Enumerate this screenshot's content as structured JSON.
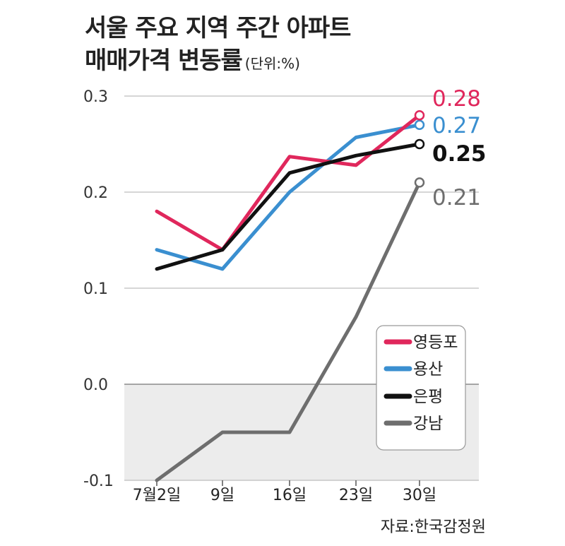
{
  "title_line1": "서울 주요 지역 주간 아파트",
  "title_line2": "매매가격 변동률",
  "unit": "(단위:%)",
  "source": "자료:한국감정원",
  "chart_data": {
    "type": "line",
    "categories": [
      "7월2일",
      "9일",
      "16일",
      "23일",
      "30일"
    ],
    "ylim": [
      -0.1,
      0.3
    ],
    "yticks": [
      0.3,
      0.2,
      0.1,
      0.0,
      -0.1
    ],
    "ytick_labels": [
      "0.3",
      "0.2",
      "0.1",
      "0.0",
      "-0.1"
    ],
    "grid": true,
    "legend_position": "bottom-right",
    "series": [
      {
        "name": "영등포",
        "color": "#e0275c",
        "values": [
          0.18,
          0.14,
          0.237,
          0.228,
          0.28
        ],
        "end_label": "0.28"
      },
      {
        "name": "용산",
        "color": "#3a8fd0",
        "values": [
          0.14,
          0.12,
          0.2,
          0.257,
          0.27
        ],
        "end_label": "0.27"
      },
      {
        "name": "은평",
        "color": "#111111",
        "values": [
          0.12,
          0.14,
          0.22,
          0.238,
          0.25
        ],
        "end_label": "0.25"
      },
      {
        "name": "강남",
        "color": "#6e6e6e",
        "values": [
          -0.1,
          -0.05,
          -0.05,
          0.07,
          0.21
        ],
        "end_label": "0.21"
      }
    ]
  }
}
